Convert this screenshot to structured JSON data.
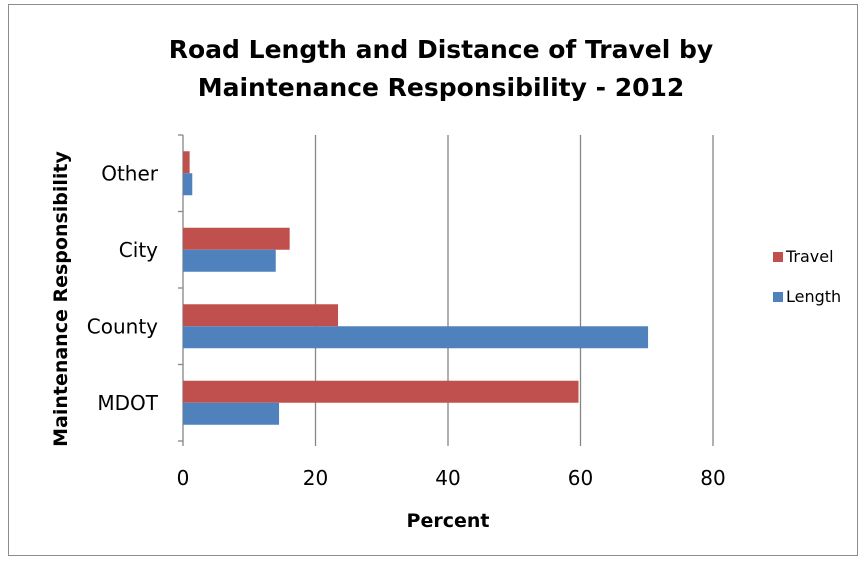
{
  "chart_data": {
    "type": "bar",
    "orientation": "horizontal",
    "title_lines": [
      "Road Length and Distance of Travel by",
      "Maintenance Responsibility - 2012"
    ],
    "xlabel": "Percent",
    "ylabel": "Maintenance Responsibility",
    "categories": [
      "MDOT",
      "County",
      "City",
      "Other"
    ],
    "series": [
      {
        "name": "Length",
        "color": "#4f81bd",
        "values": [
          14.5,
          70.2,
          14.0,
          1.4
        ]
      },
      {
        "name": "Travel",
        "color": "#c0504d",
        "values": [
          59.7,
          23.4,
          16.1,
          1.0
        ]
      }
    ],
    "xlim": [
      0,
      80
    ],
    "xticks": [
      0,
      20,
      40,
      60,
      80
    ],
    "legend_order": [
      "Travel",
      "Length"
    ],
    "legend_position": "right",
    "grid": "vertical"
  }
}
